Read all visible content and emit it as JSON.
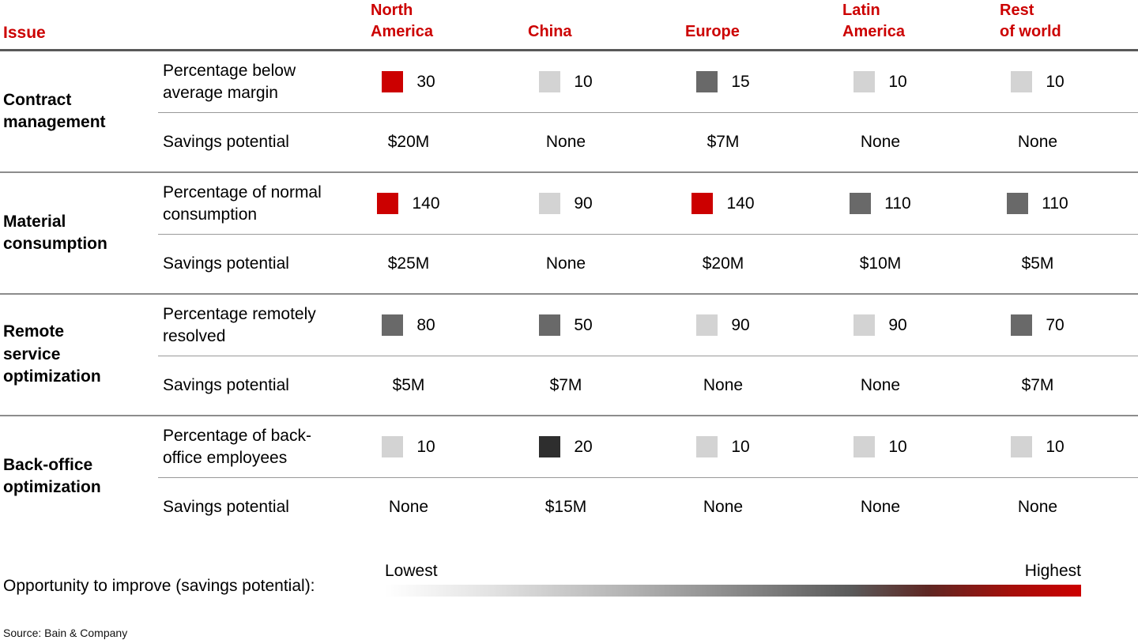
{
  "palette": {
    "red": "#cc0000",
    "light_gray": "#d3d3d3",
    "mid_gray": "#696969",
    "dark_gray": "#2e2e2e",
    "rule_gray": "#8c8c8c"
  },
  "table": {
    "issue_header": "Issue",
    "columns": [
      "North\nAmerica",
      "China",
      "Europe",
      "Latin\nAmerica",
      "Rest\nof world"
    ],
    "groups": [
      {
        "issue": "Contract\nmanagement",
        "metric_label": "Percentage below\naverage margin",
        "savings_label": "Savings potential",
        "metrics": [
          {
            "value": "30",
            "color": "#cc0000"
          },
          {
            "value": "10",
            "color": "#d3d3d3"
          },
          {
            "value": "15",
            "color": "#696969"
          },
          {
            "value": "10",
            "color": "#d3d3d3"
          },
          {
            "value": "10",
            "color": "#d3d3d3"
          }
        ],
        "savings": [
          "$20M",
          "None",
          "$7M",
          "None",
          "None"
        ]
      },
      {
        "issue": "Material\nconsumption",
        "metric_label": "Percentage of normal\nconsumption",
        "savings_label": "Savings potential",
        "metrics": [
          {
            "value": "140",
            "color": "#cc0000"
          },
          {
            "value": "90",
            "color": "#d3d3d3"
          },
          {
            "value": "140",
            "color": "#cc0000"
          },
          {
            "value": "110",
            "color": "#696969"
          },
          {
            "value": "110",
            "color": "#696969"
          }
        ],
        "savings": [
          "$25M",
          "None",
          "$20M",
          "$10M",
          "$5M"
        ]
      },
      {
        "issue": "Remote\nservice\noptimization",
        "metric_label": "Percentage remotely\nresolved",
        "savings_label": "Savings potential",
        "metrics": [
          {
            "value": "80",
            "color": "#696969"
          },
          {
            "value": "50",
            "color": "#696969"
          },
          {
            "value": "90",
            "color": "#d3d3d3"
          },
          {
            "value": "90",
            "color": "#d3d3d3"
          },
          {
            "value": "70",
            "color": "#696969"
          }
        ],
        "savings": [
          "$5M",
          "$7M",
          "None",
          "None",
          "$7M"
        ]
      },
      {
        "issue": "Back-office\noptimization",
        "metric_label": "Percentage of back-\noffice employees",
        "savings_label": "Savings potential",
        "metrics": [
          {
            "value": "10",
            "color": "#d3d3d3"
          },
          {
            "value": "20",
            "color": "#2e2e2e"
          },
          {
            "value": "10",
            "color": "#d3d3d3"
          },
          {
            "value": "10",
            "color": "#d3d3d3"
          },
          {
            "value": "10",
            "color": "#d3d3d3"
          }
        ],
        "savings": [
          "None",
          "$15M",
          "None",
          "None",
          "None"
        ]
      }
    ]
  },
  "legend": {
    "label": "Opportunity to improve (savings potential):",
    "low": "Lowest",
    "high": "Highest"
  },
  "source": "Source: Bain & Company",
  "chart_data": {
    "type": "heatmap",
    "title": "",
    "columns": [
      "North America",
      "China",
      "Europe",
      "Latin America",
      "Rest of world"
    ],
    "rows": [
      {
        "issue": "Contract management",
        "metric": "Percentage below average margin",
        "values": [
          30,
          10,
          15,
          10,
          10
        ],
        "savings_potential": [
          "$20M",
          "None",
          "$7M",
          "None",
          "None"
        ]
      },
      {
        "issue": "Material consumption",
        "metric": "Percentage of normal consumption",
        "values": [
          140,
          90,
          140,
          110,
          110
        ],
        "savings_potential": [
          "$25M",
          "None",
          "$20M",
          "$10M",
          "$5M"
        ]
      },
      {
        "issue": "Remote service optimization",
        "metric": "Percentage remotely resolved",
        "values": [
          80,
          50,
          90,
          90,
          70
        ],
        "savings_potential": [
          "$5M",
          "$7M",
          "None",
          "None",
          "$7M"
        ]
      },
      {
        "issue": "Back-office optimization",
        "metric": "Percentage of back-office employees",
        "values": [
          10,
          20,
          10,
          10,
          10
        ],
        "savings_potential": [
          "None",
          "$15M",
          "None",
          "None",
          "None"
        ]
      }
    ],
    "color_scale": {
      "label": "Opportunity to improve (savings potential)",
      "low_label": "Lowest",
      "high_label": "Highest",
      "low_color": "#ffffff",
      "high_color": "#cc0000"
    },
    "legend_position": "bottom",
    "source": "Source: Bain & Company"
  }
}
